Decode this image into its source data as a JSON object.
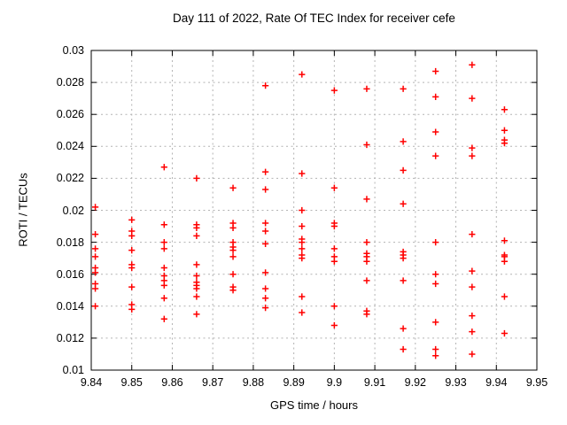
{
  "chart_data": {
    "type": "scatter",
    "title": "Day 111 of 2022, Rate Of TEC Index for receiver cefe",
    "xlabel": "GPS time / hours",
    "ylabel": "ROTI / TECUs",
    "xlim": [
      9.84,
      9.95
    ],
    "ylim": [
      0.01,
      0.03
    ],
    "grid": true,
    "legend": "none",
    "background": "#ffffff",
    "border_color": "#000000",
    "grid_color": "#b3b3b3",
    "xticks": {
      "values": [
        9.84,
        9.85,
        9.86,
        9.87,
        9.88,
        9.89,
        9.9,
        9.91,
        9.92,
        9.93,
        9.94,
        9.95
      ],
      "labels": [
        "9.84",
        "9.85",
        "9.86",
        "9.87",
        "9.88",
        "9.89",
        "9.9",
        "9.91",
        "9.92",
        "9.93",
        "9.94",
        "9.95"
      ]
    },
    "yticks": {
      "values": [
        0.01,
        0.012,
        0.014,
        0.016,
        0.018,
        0.02,
        0.022,
        0.024,
        0.026,
        0.028,
        0.03
      ],
      "labels": [
        "0.01",
        "0.012",
        "0.014",
        "0.016",
        "0.018",
        "0.02",
        "0.022",
        "0.024",
        "0.026",
        "0.028",
        "0.03"
      ]
    },
    "series": [
      {
        "name": "ROTI",
        "marker": "plus",
        "color": "#ff0000",
        "points": [
          [
            9.841,
            0.0202
          ],
          [
            9.841,
            0.0185
          ],
          [
            9.841,
            0.0176
          ],
          [
            9.841,
            0.0171
          ],
          [
            9.841,
            0.0164
          ],
          [
            9.841,
            0.0161
          ],
          [
            9.841,
            0.0154
          ],
          [
            9.841,
            0.0151
          ],
          [
            9.841,
            0.014
          ],
          [
            9.85,
            0.0194
          ],
          [
            9.85,
            0.0187
          ],
          [
            9.85,
            0.0184
          ],
          [
            9.85,
            0.0175
          ],
          [
            9.85,
            0.0166
          ],
          [
            9.85,
            0.0164
          ],
          [
            9.85,
            0.0152
          ],
          [
            9.85,
            0.0141
          ],
          [
            9.85,
            0.0138
          ],
          [
            9.858,
            0.0227
          ],
          [
            9.858,
            0.0191
          ],
          [
            9.858,
            0.018
          ],
          [
            9.858,
            0.0176
          ],
          [
            9.858,
            0.0164
          ],
          [
            9.858,
            0.0159
          ],
          [
            9.858,
            0.0156
          ],
          [
            9.858,
            0.0153
          ],
          [
            9.858,
            0.0145
          ],
          [
            9.858,
            0.0132
          ],
          [
            9.866,
            0.022
          ],
          [
            9.866,
            0.0191
          ],
          [
            9.866,
            0.0189
          ],
          [
            9.866,
            0.0184
          ],
          [
            9.866,
            0.0166
          ],
          [
            9.866,
            0.0159
          ],
          [
            9.866,
            0.0155
          ],
          [
            9.866,
            0.0153
          ],
          [
            9.866,
            0.0151
          ],
          [
            9.866,
            0.0146
          ],
          [
            9.866,
            0.0135
          ],
          [
            9.875,
            0.0214
          ],
          [
            9.875,
            0.0192
          ],
          [
            9.875,
            0.0189
          ],
          [
            9.875,
            0.018
          ],
          [
            9.875,
            0.0177
          ],
          [
            9.875,
            0.0175
          ],
          [
            9.875,
            0.0171
          ],
          [
            9.875,
            0.016
          ],
          [
            9.875,
            0.0152
          ],
          [
            9.875,
            0.015
          ],
          [
            9.883,
            0.0278
          ],
          [
            9.883,
            0.0224
          ],
          [
            9.883,
            0.0213
          ],
          [
            9.883,
            0.0192
          ],
          [
            9.883,
            0.0187
          ],
          [
            9.883,
            0.0179
          ],
          [
            9.883,
            0.0161
          ],
          [
            9.883,
            0.0151
          ],
          [
            9.883,
            0.0145
          ],
          [
            9.883,
            0.0139
          ],
          [
            9.892,
            0.0285
          ],
          [
            9.892,
            0.0223
          ],
          [
            9.892,
            0.02
          ],
          [
            9.892,
            0.019
          ],
          [
            9.892,
            0.0182
          ],
          [
            9.892,
            0.018
          ],
          [
            9.892,
            0.0176
          ],
          [
            9.892,
            0.0172
          ],
          [
            9.892,
            0.017
          ],
          [
            9.892,
            0.0146
          ],
          [
            9.892,
            0.0136
          ],
          [
            9.9,
            0.0275
          ],
          [
            9.9,
            0.0214
          ],
          [
            9.9,
            0.0192
          ],
          [
            9.9,
            0.019
          ],
          [
            9.9,
            0.0176
          ],
          [
            9.9,
            0.0171
          ],
          [
            9.9,
            0.0168
          ],
          [
            9.9,
            0.014
          ],
          [
            9.9,
            0.0128
          ],
          [
            9.908,
            0.0276
          ],
          [
            9.908,
            0.0241
          ],
          [
            9.908,
            0.0207
          ],
          [
            9.908,
            0.018
          ],
          [
            9.908,
            0.0173
          ],
          [
            9.908,
            0.0171
          ],
          [
            9.908,
            0.0168
          ],
          [
            9.908,
            0.0156
          ],
          [
            9.908,
            0.0137
          ],
          [
            9.908,
            0.0135
          ],
          [
            9.917,
            0.0276
          ],
          [
            9.917,
            0.0243
          ],
          [
            9.917,
            0.0225
          ],
          [
            9.917,
            0.0204
          ],
          [
            9.917,
            0.0174
          ],
          [
            9.917,
            0.0172
          ],
          [
            9.917,
            0.017
          ],
          [
            9.917,
            0.0156
          ],
          [
            9.917,
            0.0126
          ],
          [
            9.917,
            0.0113
          ],
          [
            9.925,
            0.0287
          ],
          [
            9.925,
            0.0271
          ],
          [
            9.925,
            0.0249
          ],
          [
            9.925,
            0.0234
          ],
          [
            9.925,
            0.018
          ],
          [
            9.925,
            0.016
          ],
          [
            9.925,
            0.0154
          ],
          [
            9.925,
            0.013
          ],
          [
            9.925,
            0.0113
          ],
          [
            9.925,
            0.0109
          ],
          [
            9.934,
            0.0291
          ],
          [
            9.934,
            0.027
          ],
          [
            9.934,
            0.0239
          ],
          [
            9.934,
            0.0234
          ],
          [
            9.934,
            0.0185
          ],
          [
            9.934,
            0.0162
          ],
          [
            9.934,
            0.0152
          ],
          [
            9.934,
            0.0134
          ],
          [
            9.934,
            0.0124
          ],
          [
            9.934,
            0.011
          ],
          [
            9.942,
            0.0263
          ],
          [
            9.942,
            0.025
          ],
          [
            9.942,
            0.0244
          ],
          [
            9.942,
            0.0242
          ],
          [
            9.942,
            0.0181
          ],
          [
            9.942,
            0.0172
          ],
          [
            9.942,
            0.0171
          ],
          [
            9.942,
            0.0168
          ],
          [
            9.942,
            0.0146
          ],
          [
            9.942,
            0.0123
          ]
        ]
      }
    ]
  }
}
